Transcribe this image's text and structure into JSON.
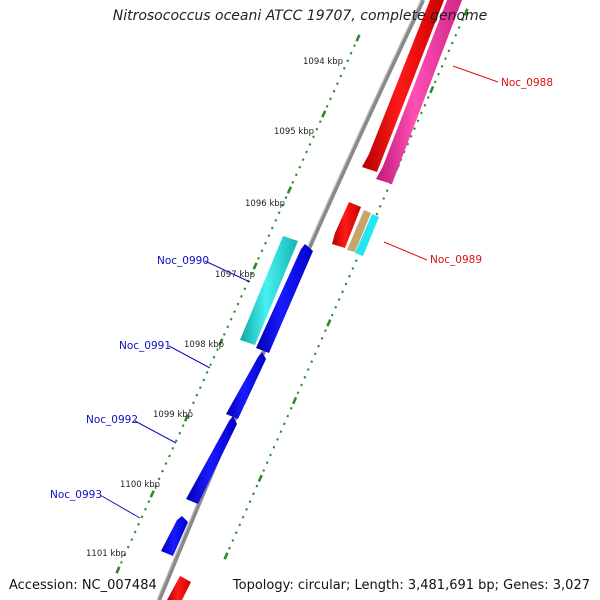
{
  "title": "Nitrosococcus oceani ATCC 19707, complete genome",
  "footer": {
    "accession": "Accession: NC_007484",
    "stats": "Topology: circular; Length: 3,481,691 bp; Genes: 3,027"
  },
  "colors": {
    "backbone": "#8a8a8a",
    "ticks": "#2a8a2a",
    "forward_label": "#1010c0",
    "reverse_label": "#e01010",
    "blue_gene": "#0000e6",
    "cyan_gene": "#19c9c9",
    "red_gene": "#ee0000",
    "pink_gene": "#ff2fa8"
  },
  "ticks": [
    "1094 kbp",
    "1095 kbp",
    "1096 kbp",
    "1097 kbp",
    "1098 kbp",
    "1099 kbp",
    "1100 kbp",
    "1101 kbp"
  ],
  "gene_labels": {
    "reverse": [
      "Noc_0988",
      "Noc_0989"
    ],
    "forward": [
      "Noc_0990",
      "Noc_0991",
      "Noc_0992",
      "Noc_0993"
    ]
  }
}
